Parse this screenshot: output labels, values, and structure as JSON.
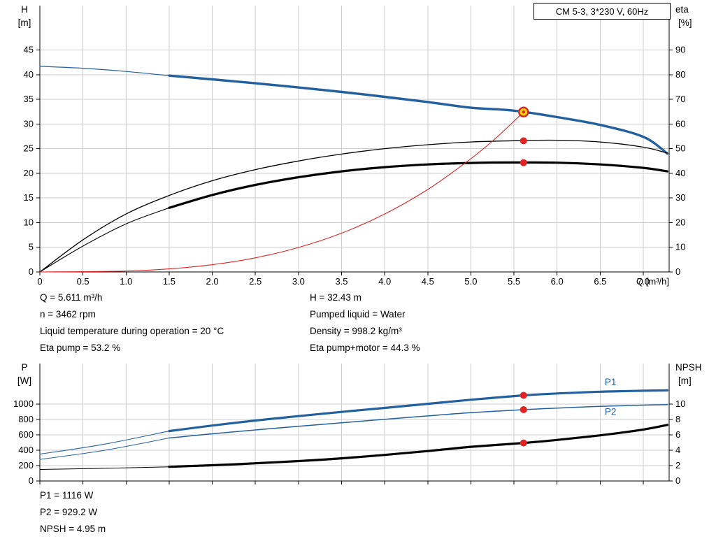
{
  "colors": {
    "curve_blue": "#23609f",
    "curve_black": "#000000",
    "curve_red": "#df2423",
    "marker_red": "#e02423",
    "duty_fill": "#ffd800",
    "grid": "#cdcdcd",
    "axis": "#000000",
    "label_blue": "#23609f"
  },
  "title_box": {
    "text": "CM 5-3, 3*230 V, 60Hz"
  },
  "operating_point_info": {
    "left": [
      "Q = 5.611 m³/h",
      "n = 3462 rpm",
      "Liquid temperature during operation = 20 °C",
      "Eta pump = 53.2 %"
    ],
    "right": [
      "H = 32.43 m",
      "Pumped liquid = Water",
      "Density = 998.2 kg/m³",
      "Eta pump+motor = 44.3 %"
    ]
  },
  "power_info": [
    "P1 = 1116 W",
    "P2 = 929.2 W",
    "NPSH = 4.95 m"
  ],
  "chart_data": [
    {
      "id": "qh",
      "type": "line",
      "title": "CM 5-3, 3*230 V, 60Hz",
      "x_axis": {
        "label": "Q [m³/h]",
        "min": 0,
        "max": 7.3,
        "ticks": [
          0,
          0.5,
          1,
          1.5,
          2,
          2.5,
          3,
          3.5,
          4,
          4.5,
          5,
          5.5,
          6,
          6.5,
          7
        ],
        "tick_labels": [
          "0",
          "0.5",
          "1.0",
          "1.5",
          "2.0",
          "2.5",
          "3.0",
          "3.5",
          "4.0",
          "4.5",
          "5.0",
          "5.5",
          "6.0",
          "6.5",
          "7.0"
        ],
        "show_labels": true
      },
      "y_left": {
        "label_line1": "H",
        "label_line2": "[m]",
        "min": 0,
        "max": 54,
        "ticks": [
          0,
          5,
          10,
          15,
          20,
          25,
          30,
          35,
          40,
          45
        ]
      },
      "y_right": {
        "label_line1": "eta",
        "label_line2": "[%]",
        "min": 0,
        "max": 108,
        "ticks": [
          0,
          10,
          20,
          30,
          40,
          50,
          60,
          70,
          80,
          90
        ]
      },
      "series": [
        {
          "name": "head-lead",
          "axis": "left",
          "color_key": "curve_blue",
          "width": 1.2,
          "points": [
            [
              0,
              41.7
            ],
            [
              0.5,
              41.3
            ],
            [
              1.0,
              40.65
            ],
            [
              1.5,
              39.8
            ]
          ]
        },
        {
          "name": "head",
          "axis": "left",
          "color_key": "curve_blue",
          "width": 3.4,
          "points": [
            [
              1.5,
              39.8
            ],
            [
              2,
              39.05
            ],
            [
              2.5,
              38.25
            ],
            [
              3,
              37.4
            ],
            [
              3.5,
              36.5
            ],
            [
              4,
              35.5
            ],
            [
              4.5,
              34.45
            ],
            [
              5,
              33.3
            ],
            [
              5.5,
              32.7
            ],
            [
              6,
              31.4
            ],
            [
              6.5,
              29.8
            ],
            [
              7,
              27.4
            ],
            [
              7.28,
              24.0
            ]
          ]
        },
        {
          "name": "eta-pump",
          "axis": "right",
          "color_key": "curve_black",
          "width": 1.3,
          "points": [
            [
              0,
              0
            ],
            [
              0.5,
              13
            ],
            [
              1,
              23.5
            ],
            [
              1.5,
              31
            ],
            [
              2,
              37
            ],
            [
              2.5,
              41.5
            ],
            [
              3,
              45
            ],
            [
              3.5,
              47.8
            ],
            [
              4,
              50
            ],
            [
              4.5,
              51.6
            ],
            [
              5,
              52.7
            ],
            [
              5.5,
              53.2
            ],
            [
              6,
              53.4
            ],
            [
              6.5,
              52.7
            ],
            [
              7,
              50.6
            ],
            [
              7.28,
              48.2
            ]
          ]
        },
        {
          "name": "eta-pump-motor-lead",
          "axis": "right",
          "color_key": "curve_black",
          "width": 1.1,
          "points": [
            [
              0,
              0
            ],
            [
              0.5,
              10.5
            ],
            [
              1,
              19.5
            ],
            [
              1.5,
              26
            ]
          ]
        },
        {
          "name": "eta-pump-motor",
          "axis": "right",
          "color_key": "curve_black",
          "width": 3.2,
          "points": [
            [
              1.5,
              26
            ],
            [
              2,
              31.2
            ],
            [
              2.5,
              35.3
            ],
            [
              3,
              38.4
            ],
            [
              3.5,
              40.8
            ],
            [
              4,
              42.5
            ],
            [
              4.5,
              43.6
            ],
            [
              5,
              44.2
            ],
            [
              5.5,
              44.4
            ],
            [
              6,
              44.3
            ],
            [
              6.5,
              43.6
            ],
            [
              7,
              42.2
            ],
            [
              7.28,
              40.8
            ]
          ]
        },
        {
          "name": "system-curve",
          "axis": "left",
          "color_key": "curve_red",
          "width": 1.1,
          "points": [
            [
              0,
              0
            ],
            [
              1,
              0.18
            ],
            [
              1.5,
              0.62
            ],
            [
              2,
              1.47
            ],
            [
              2.5,
              2.87
            ],
            [
              3,
              4.96
            ],
            [
              3.5,
              7.87
            ],
            [
              4,
              11.75
            ],
            [
              4.5,
              16.73
            ],
            [
              5,
              22.95
            ],
            [
              5.3,
              27.3
            ],
            [
              5.611,
              32.43
            ]
          ]
        }
      ],
      "markers": [
        {
          "name": "duty-point",
          "style": "duty",
          "axis": "left",
          "x": 5.611,
          "y": 32.43
        },
        {
          "name": "eta-pump-point",
          "style": "dot",
          "axis": "right",
          "x": 5.611,
          "y": 53.2
        },
        {
          "name": "eta-pump-motor-point",
          "style": "dot",
          "axis": "right",
          "x": 5.611,
          "y": 44.3
        }
      ],
      "curve_labels": []
    },
    {
      "id": "power",
      "type": "line",
      "title": "",
      "x_axis": {
        "label": "",
        "min": 0,
        "max": 7.3,
        "ticks": [
          0,
          0.5,
          1,
          1.5,
          2,
          2.5,
          3,
          3.5,
          4,
          4.5,
          5,
          5.5,
          6,
          6.5,
          7
        ],
        "tick_labels": [],
        "show_labels": false
      },
      "y_left": {
        "label_line1": "P",
        "label_line2": "[W]",
        "min": 0,
        "max": 1530,
        "ticks": [
          0,
          200,
          400,
          600,
          800,
          1000
        ]
      },
      "y_right": {
        "label_line1": "NPSH",
        "label_line2": "[m]",
        "min": 0,
        "max": 15.3,
        "ticks": [
          0,
          2,
          4,
          6,
          8,
          10
        ]
      },
      "series": [
        {
          "name": "p1-lead",
          "axis": "left",
          "color_key": "curve_blue",
          "width": 1.1,
          "points": [
            [
              0,
              350
            ],
            [
              0.75,
              480
            ],
            [
              1.5,
              650
            ]
          ]
        },
        {
          "name": "p1",
          "axis": "left",
          "color_key": "curve_blue",
          "width": 3.2,
          "points": [
            [
              1.5,
              650
            ],
            [
              2,
              722
            ],
            [
              2.5,
              788
            ],
            [
              3,
              845
            ],
            [
              3.5,
              900
            ],
            [
              4,
              952
            ],
            [
              4.5,
              1005
            ],
            [
              5,
              1058
            ],
            [
              5.611,
              1116
            ],
            [
              6,
              1140
            ],
            [
              6.5,
              1163
            ],
            [
              7,
              1176
            ],
            [
              7.28,
              1180
            ]
          ]
        },
        {
          "name": "p2-lead",
          "axis": "left",
          "color_key": "curve_blue",
          "width": 1.0,
          "points": [
            [
              0,
              280
            ],
            [
              0.75,
              400
            ],
            [
              1.5,
              560
            ]
          ]
        },
        {
          "name": "p2",
          "axis": "left",
          "color_key": "curve_blue",
          "width": 1.5,
          "points": [
            [
              1.5,
              560
            ],
            [
              2,
              615
            ],
            [
              2.5,
              665
            ],
            [
              3,
              712
            ],
            [
              3.5,
              758
            ],
            [
              4,
              803
            ],
            [
              4.5,
              848
            ],
            [
              5,
              890
            ],
            [
              5.611,
              929.2
            ],
            [
              6,
              950
            ],
            [
              6.5,
              972
            ],
            [
              7,
              988
            ],
            [
              7.28,
              995
            ]
          ]
        },
        {
          "name": "npsh-lead",
          "axis": "right",
          "color_key": "curve_black",
          "width": 1.0,
          "points": [
            [
              0,
              1.5
            ],
            [
              0.75,
              1.65
            ],
            [
              1.5,
              1.85
            ]
          ]
        },
        {
          "name": "npsh",
          "axis": "right",
          "color_key": "curve_black",
          "width": 3.2,
          "points": [
            [
              1.5,
              1.85
            ],
            [
              2,
              2.05
            ],
            [
              2.5,
              2.3
            ],
            [
              3,
              2.6
            ],
            [
              3.5,
              2.95
            ],
            [
              4,
              3.4
            ],
            [
              4.5,
              3.9
            ],
            [
              5,
              4.45
            ],
            [
              5.611,
              4.95
            ],
            [
              6,
              5.35
            ],
            [
              6.5,
              5.95
            ],
            [
              7,
              6.7
            ],
            [
              7.28,
              7.3
            ]
          ]
        }
      ],
      "markers": [
        {
          "name": "p1-point",
          "style": "dot",
          "axis": "left",
          "x": 5.611,
          "y": 1116
        },
        {
          "name": "p2-point",
          "style": "dot",
          "axis": "left",
          "x": 5.611,
          "y": 929.2
        },
        {
          "name": "npsh-point",
          "style": "dot",
          "axis": "right",
          "x": 5.611,
          "y": 4.95
        }
      ],
      "curve_labels": [
        {
          "text": "P1",
          "axis": "left",
          "x": 6.62,
          "y": 1248,
          "color_key": "label_blue"
        },
        {
          "text": "P2",
          "axis": "left",
          "x": 6.62,
          "y": 860,
          "color_key": "label_blue"
        }
      ]
    }
  ]
}
